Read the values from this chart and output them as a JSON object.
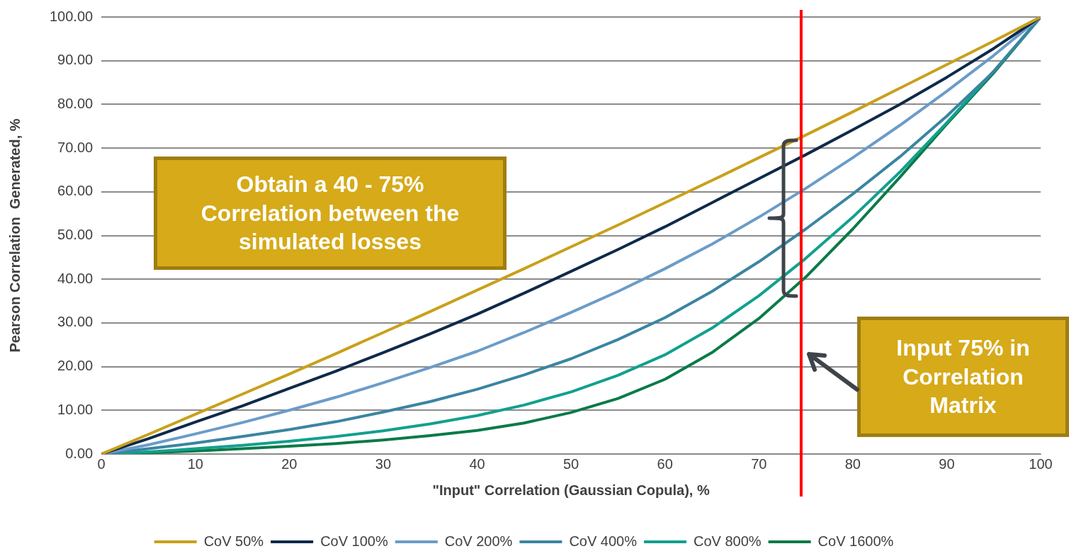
{
  "chart_data": {
    "type": "line",
    "xlabel": "\"Input\" Correlation (Gaussian Copula), %",
    "ylabel": "Pearson Correlation  Generated, %",
    "x": [
      0,
      5,
      10,
      15,
      20,
      25,
      30,
      35,
      40,
      45,
      50,
      55,
      60,
      65,
      70,
      75,
      80,
      85,
      90,
      95,
      100
    ],
    "series": [
      {
        "name": "CoV 50%",
        "color": "#c9a01a",
        "values": [
          0,
          4.5,
          9.1,
          13.7,
          18.3,
          23.0,
          27.8,
          32.6,
          37.5,
          42.4,
          47.4,
          52.4,
          57.5,
          62.6,
          67.8,
          73.0,
          78.3,
          83.7,
          89.1,
          94.5,
          100
        ]
      },
      {
        "name": "CoV 100%",
        "color": "#0e2a4a",
        "values": [
          0,
          3.5,
          7.3,
          11.0,
          15.0,
          19.0,
          23.2,
          27.5,
          32.0,
          36.8,
          41.8,
          46.8,
          52.0,
          57.5,
          63.0,
          68.5,
          74.2,
          80.0,
          86.2,
          92.8,
          100
        ]
      },
      {
        "name": "CoV 200%",
        "color": "#6b9cc8",
        "values": [
          0,
          2.1,
          4.6,
          7.2,
          10.0,
          13.0,
          16.3,
          19.8,
          23.5,
          27.8,
          32.4,
          37.2,
          42.4,
          48.0,
          54.2,
          60.8,
          67.8,
          75.2,
          83.0,
          91.2,
          100
        ]
      },
      {
        "name": "CoV 400%",
        "color": "#3a85a2",
        "values": [
          0,
          1.2,
          2.5,
          4.0,
          5.6,
          7.4,
          9.6,
          12.0,
          14.8,
          18.1,
          21.8,
          26.2,
          31.2,
          37.2,
          44.0,
          51.5,
          59.5,
          68.0,
          77.3,
          87.5,
          100
        ]
      },
      {
        "name": "CoV 800%",
        "color": "#12a08e",
        "values": [
          0,
          0.5,
          1.2,
          2.0,
          2.9,
          4.0,
          5.3,
          6.9,
          8.8,
          11.2,
          14.2,
          18.0,
          22.7,
          28.8,
          36.2,
          44.8,
          54.2,
          64.5,
          75.8,
          87.6,
          100
        ]
      },
      {
        "name": "CoV 1600%",
        "color": "#0b7a48",
        "values": [
          0,
          0.3,
          0.7,
          1.2,
          1.8,
          2.4,
          3.2,
          4.2,
          5.4,
          7.1,
          9.5,
          12.7,
          17.1,
          23.2,
          31.0,
          40.5,
          51.5,
          63.3,
          75.5,
          87.2,
          100
        ]
      }
    ],
    "xlim": [
      0,
      100
    ],
    "xticks": [
      0,
      10,
      20,
      30,
      40,
      50,
      60,
      70,
      80,
      90,
      100
    ],
    "ylim": [
      0,
      100
    ],
    "yticks": [
      {
        "value": 0,
        "label": "0.00"
      },
      {
        "value": 10,
        "label": "10.00"
      },
      {
        "value": 20,
        "label": "20.00"
      },
      {
        "value": 30,
        "label": "30.00"
      },
      {
        "value": 40,
        "label": "40.00"
      },
      {
        "value": 50,
        "label": "50.00"
      },
      {
        "value": 60,
        "label": "60.00"
      },
      {
        "value": 70,
        "label": "70.00"
      },
      {
        "value": 80,
        "label": "80.00"
      },
      {
        "value": 90,
        "label": "90.00"
      },
      {
        "value": 100,
        "label": "100.00"
      }
    ],
    "ref_lines": [
      {
        "axis": "x",
        "value": 74.5,
        "color": "#ff0000"
      }
    ],
    "annotations": [
      "Obtain a 40 - 75%\nCorrelation between the\nsimulated losses",
      "Input 75% in\nCorrelation\nMatrix"
    ],
    "grid": "y",
    "legend": "bottom",
    "marker": "none",
    "line_style": "solid"
  }
}
